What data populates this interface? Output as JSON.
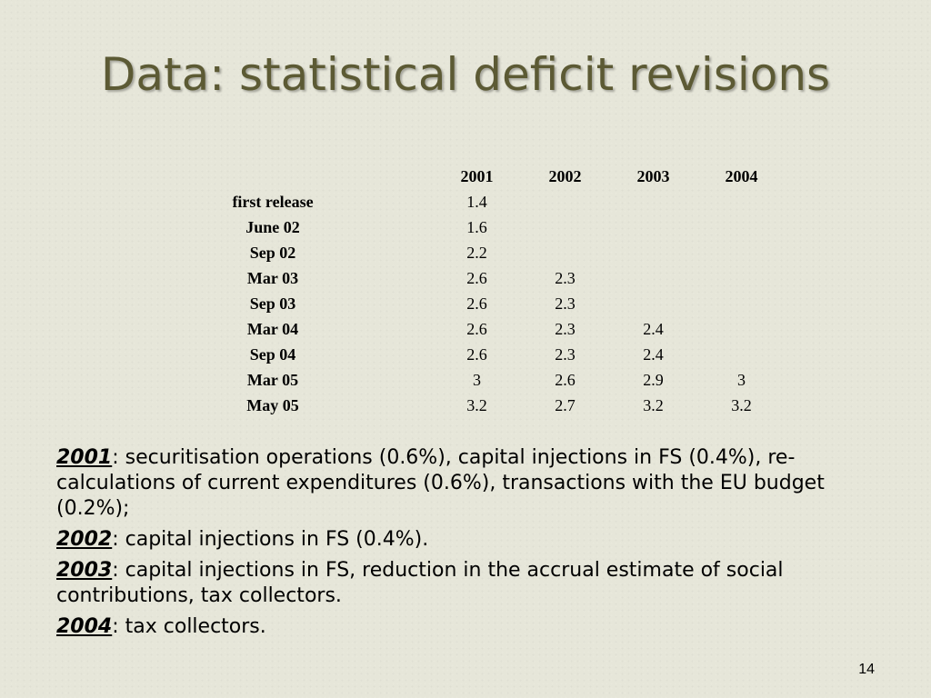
{
  "slide": {
    "title": "Data: statistical deficit revisions",
    "page_number": "14"
  },
  "table": {
    "columns": [
      "2001",
      "2002",
      "2003",
      "2004"
    ],
    "rows": [
      {
        "label": "first release",
        "values": [
          "1.4",
          "",
          "",
          ""
        ]
      },
      {
        "label": "June 02",
        "values": [
          "1.6",
          "",
          "",
          ""
        ]
      },
      {
        "label": "Sep 02",
        "values": [
          "2.2",
          "",
          "",
          ""
        ]
      },
      {
        "label": "Mar 03",
        "values": [
          "2.6",
          "2.3",
          "",
          ""
        ]
      },
      {
        "label": "Sep 03",
        "values": [
          "2.6",
          "2.3",
          "",
          ""
        ]
      },
      {
        "label": "Mar 04",
        "values": [
          "2.6",
          "2.3",
          "2.4",
          ""
        ]
      },
      {
        "label": "Sep 04",
        "values": [
          "2.6",
          "2.3",
          "2.4",
          ""
        ]
      },
      {
        "label": "Mar 05",
        "values": [
          "3",
          "2.6",
          "2.9",
          "3"
        ]
      },
      {
        "label": "May 05",
        "values": [
          "3.2",
          "2.7",
          "3.2",
          "3.2"
        ]
      }
    ]
  },
  "notes": [
    {
      "year": "2001",
      "text": ": securitisation operations (0.6%), capital injections in FS (0.4%), re-calculations of current expenditures (0.6%), transactions with the EU budget (0.2%);"
    },
    {
      "year": "2002",
      "text": ": capital injections in FS (0.4%)."
    },
    {
      "year": "2003",
      "text": ": capital injections in FS, reduction in the accrual estimate of social contributions, tax collectors."
    },
    {
      "year": "2004",
      "text": ": tax collectors."
    }
  ]
}
